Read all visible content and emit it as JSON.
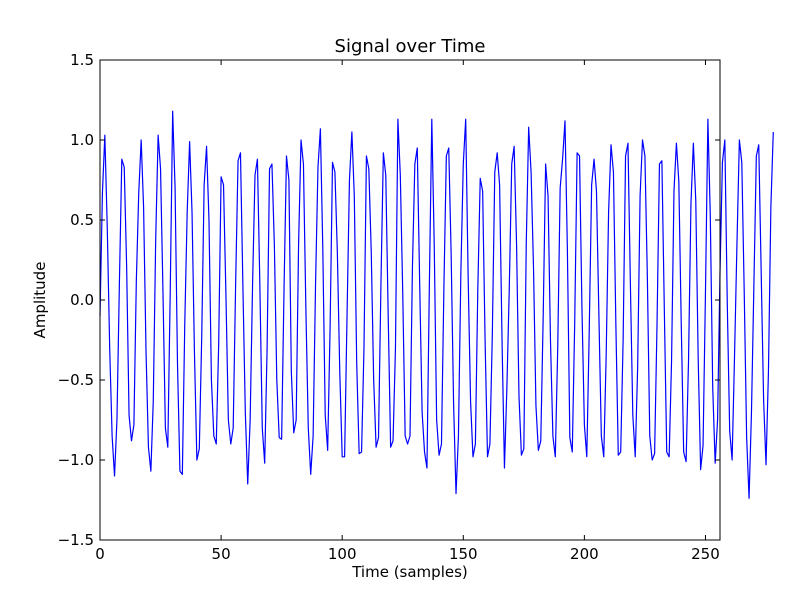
{
  "chart_data": {
    "type": "line",
    "title": "Signal over Time",
    "xlabel": "Time (samples)",
    "ylabel": "Amplitude",
    "xlim": [
      0,
      256
    ],
    "ylim": [
      -1.5,
      1.5
    ],
    "xticks": [
      0,
      50,
      100,
      150,
      200,
      250
    ],
    "yticks": [
      -1.5,
      -1.0,
      -0.5,
      0.0,
      0.5,
      1.0,
      1.5
    ],
    "xtick_labels": [
      "0",
      "50",
      "100",
      "150",
      "200",
      "250"
    ],
    "ytick_labels": [
      "−1.5",
      "−1.0",
      "−0.5",
      "0.0",
      "0.5",
      "1.0",
      "1.5"
    ],
    "grid": false,
    "series": [
      {
        "color": "#0000ff",
        "x_start": 0,
        "x_step": 1,
        "values": [
          -0.1,
          0.67,
          1.03,
          0.45,
          -0.3,
          -0.85,
          -1.1,
          -0.75,
          0.1,
          0.88,
          0.83,
          0.21,
          -0.72,
          -0.88,
          -0.78,
          0.12,
          0.67,
          1.0,
          0.58,
          -0.32,
          -0.92,
          -1.07,
          -0.63,
          0.38,
          1.03,
          0.82,
          0.05,
          -0.8,
          -0.92,
          0.05,
          1.18,
          0.7,
          -0.4,
          -1.07,
          -1.09,
          -0.15,
          0.55,
          0.99,
          0.55,
          -0.33,
          -1.0,
          -0.93,
          -0.23,
          0.72,
          0.96,
          0.5,
          -0.5,
          -0.85,
          -0.9,
          -0.28,
          0.77,
          0.72,
          0.03,
          -0.75,
          -0.9,
          -0.8,
          0.1,
          0.87,
          0.92,
          0.09,
          -0.7,
          -1.15,
          -0.75,
          0.1,
          0.78,
          0.88,
          0.1,
          -0.8,
          -1.02,
          -0.3,
          0.82,
          0.85,
          0.34,
          -0.5,
          -0.86,
          -0.87,
          0.08,
          0.9,
          0.75,
          -0.45,
          -0.83,
          -0.75,
          0.35,
          1.0,
          0.85,
          -0.05,
          -0.8,
          -1.09,
          -0.85,
          0.1,
          0.83,
          1.07,
          0.32,
          -0.72,
          -0.94,
          -0.18,
          0.86,
          0.8,
          0.3,
          -0.45,
          -0.98,
          -0.98,
          -0.1,
          0.75,
          1.05,
          0.65,
          -0.4,
          -0.96,
          -0.95,
          -0.3,
          0.9,
          0.82,
          0.3,
          -0.5,
          -0.92,
          -0.86,
          0.1,
          0.92,
          0.78,
          -0.1,
          -0.92,
          -0.88,
          -0.3,
          1.13,
          0.78,
          0.05,
          -0.85,
          -0.9,
          -0.85,
          0.2,
          0.85,
          0.95,
          0.1,
          -0.7,
          -0.95,
          -1.05,
          0.1,
          1.13,
          0.35,
          -0.75,
          -0.97,
          -0.9,
          0.08,
          0.9,
          0.95,
          0.28,
          -0.65,
          -1.21,
          -0.85,
          0.17,
          0.85,
          1.13,
          0.15,
          -0.63,
          -0.98,
          -0.9,
          0.07,
          0.76,
          0.68,
          -0.25,
          -0.98,
          -0.9,
          -0.21,
          0.8,
          0.92,
          0.72,
          -0.25,
          -1.05,
          -0.55,
          0.08,
          0.85,
          0.96,
          0.35,
          -0.6,
          -0.97,
          -0.93,
          0.35,
          1.08,
          0.8,
          0.2,
          -0.66,
          -0.94,
          -0.88,
          -0.1,
          0.85,
          0.65,
          -0.25,
          -0.85,
          -0.98,
          -0.3,
          0.7,
          0.88,
          1.12,
          0.3,
          -0.86,
          -0.95,
          -0.15,
          0.92,
          0.9,
          -0.05,
          -0.78,
          -0.98,
          -0.2,
          0.72,
          0.88,
          0.68,
          -0.1,
          -0.85,
          -0.98,
          -0.35,
          0.55,
          0.97,
          0.8,
          -0.15,
          -0.97,
          -0.95,
          -0.25,
          0.9,
          0.98,
          0.1,
          -0.72,
          -0.98,
          -0.42,
          0.65,
          1.0,
          0.9,
          0.15,
          -0.85,
          -1.0,
          -0.96,
          -0.15,
          0.85,
          0.87,
          -0.05,
          -0.95,
          -0.98,
          -0.38,
          0.68,
          0.98,
          0.74,
          -0.15,
          -0.95,
          -1.01,
          -0.38,
          0.6,
          0.98,
          0.62,
          -0.37,
          -1.06,
          -0.91,
          0.05,
          1.13,
          0.52,
          -0.55,
          -1.02,
          -0.75,
          0.17,
          0.86,
          1.0,
          -0.02,
          -0.82,
          -1.0,
          -0.35,
          0.35,
          1.0,
          0.86,
          0.05,
          -0.86,
          -1.24,
          -0.7,
          0.1,
          0.9,
          0.97,
          0.18,
          -0.62,
          -1.03,
          -0.45,
          0.58,
          1.05
        ]
      }
    ]
  }
}
